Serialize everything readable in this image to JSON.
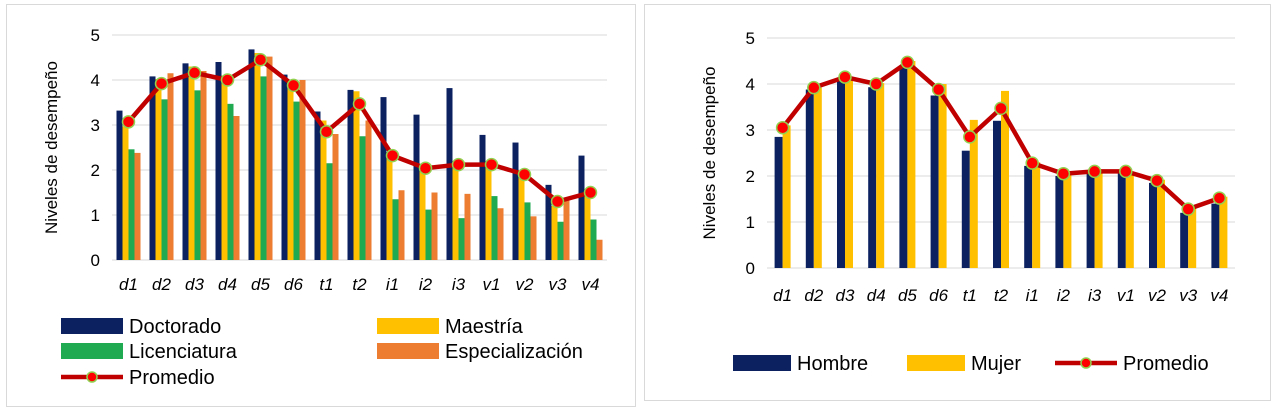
{
  "colors": {
    "doctorado": "#0b2160",
    "maestria": "#ffc000",
    "licenciatura": "#1faa52",
    "especializacion": "#ed7d31",
    "promedio_line": "#c00000",
    "promedio_marker": "#ff0000",
    "promedio_marker_edge": "#92d050",
    "hombre": "#0b2160",
    "mujer": "#ffc000",
    "gridline": "#d9d9d9"
  },
  "chart_data": [
    {
      "type": "bar",
      "ylabel": "Niveles de desempeño",
      "xlabel": "",
      "ylim": [
        0,
        5
      ],
      "yticks": [
        "0",
        "1",
        "2",
        "3",
        "4",
        "5"
      ],
      "grid": true,
      "legend_placement": "bottom",
      "categories": [
        "d1",
        "d2",
        "d3",
        "d4",
        "d5",
        "d6",
        "t1",
        "t2",
        "i1",
        "i2",
        "i3",
        "v1",
        "v2",
        "v3",
        "v4"
      ],
      "series": [
        {
          "name": "Doctorado",
          "values": [
            3.32,
            4.08,
            4.37,
            4.4,
            4.68,
            4.12,
            3.3,
            3.78,
            3.62,
            3.23,
            3.82,
            2.78,
            2.61,
            1.67,
            2.32
          ]
        },
        {
          "name": "Maestría",
          "values": [
            2.97,
            4.02,
            4.3,
            4.1,
            4.6,
            3.8,
            3.1,
            3.75,
            2.4,
            2.0,
            2.2,
            2.1,
            1.9,
            1.2,
            1.5
          ]
        },
        {
          "name": "Licenciatura",
          "values": [
            2.46,
            3.57,
            3.77,
            3.47,
            4.08,
            3.52,
            2.15,
            2.75,
            1.35,
            1.12,
            0.93,
            1.42,
            1.28,
            0.85,
            0.9
          ]
        },
        {
          "name": "Especialización",
          "values": [
            2.38,
            4.15,
            4.2,
            3.2,
            4.52,
            4.0,
            2.8,
            3.1,
            1.55,
            1.5,
            1.47,
            1.15,
            0.97,
            1.35,
            0.45
          ]
        }
      ],
      "line": {
        "name": "Promedio",
        "values": [
          3.07,
          3.92,
          4.16,
          4.0,
          4.45,
          3.88,
          2.85,
          3.47,
          2.32,
          2.04,
          2.12,
          2.12,
          1.9,
          1.3,
          1.5
        ]
      }
    },
    {
      "type": "bar",
      "ylabel": "Niveles de desempeño",
      "xlabel": "",
      "ylim": [
        0,
        5
      ],
      "yticks": [
        "0",
        "1",
        "2",
        "3",
        "4",
        "5"
      ],
      "grid": true,
      "legend_placement": "bottom",
      "categories": [
        "d1",
        "d2",
        "d3",
        "d4",
        "d5",
        "d6",
        "t1",
        "t2",
        "i1",
        "i2",
        "i3",
        "v1",
        "v2",
        "v3",
        "v4"
      ],
      "series": [
        {
          "name": "Hombre",
          "values": [
            2.85,
            3.88,
            4.13,
            3.93,
            4.4,
            3.75,
            2.55,
            3.2,
            2.22,
            2.0,
            2.07,
            2.07,
            1.85,
            1.2,
            1.4
          ]
        },
        {
          "name": "Mujer",
          "values": [
            3.1,
            3.92,
            4.14,
            4.02,
            4.5,
            4.0,
            3.22,
            3.85,
            2.3,
            2.05,
            2.1,
            2.1,
            1.92,
            1.3,
            1.55
          ]
        }
      ],
      "line": {
        "name": "Promedio",
        "values": [
          3.05,
          3.92,
          4.15,
          4.0,
          4.47,
          3.88,
          2.85,
          3.47,
          2.28,
          2.05,
          2.1,
          2.1,
          1.9,
          1.28,
          1.52
        ]
      }
    }
  ]
}
